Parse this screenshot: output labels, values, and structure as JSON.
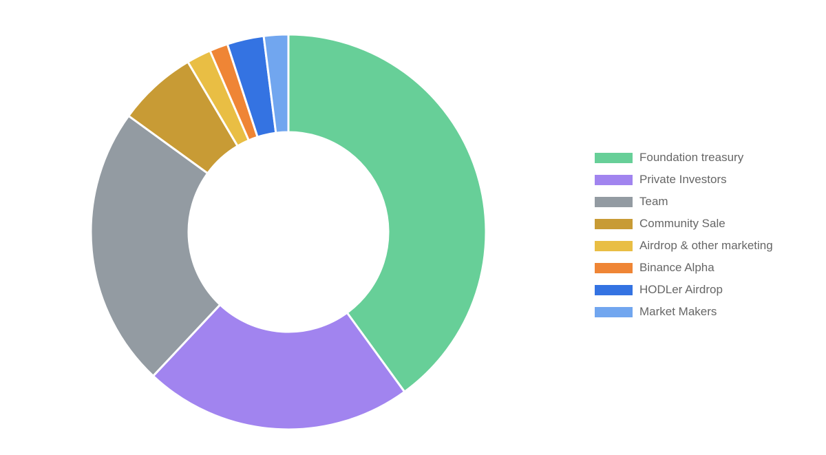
{
  "chart_data": {
    "type": "pie",
    "donut": true,
    "legend_position": "right",
    "categories": [
      "Foundation treasury",
      "Private Investors",
      "Team",
      "Community Sale",
      "Airdrop & other marketing",
      "Binance Alpha",
      "HODLer Airdrop",
      "Market Makers"
    ],
    "values": [
      40,
      22,
      23,
      6.5,
      2,
      1.5,
      3,
      2
    ],
    "colors": [
      "#67cf98",
      "#a184ef",
      "#939ba2",
      "#c89b35",
      "#e9be44",
      "#ef8535",
      "#3473e2",
      "#71a6ef"
    ]
  }
}
